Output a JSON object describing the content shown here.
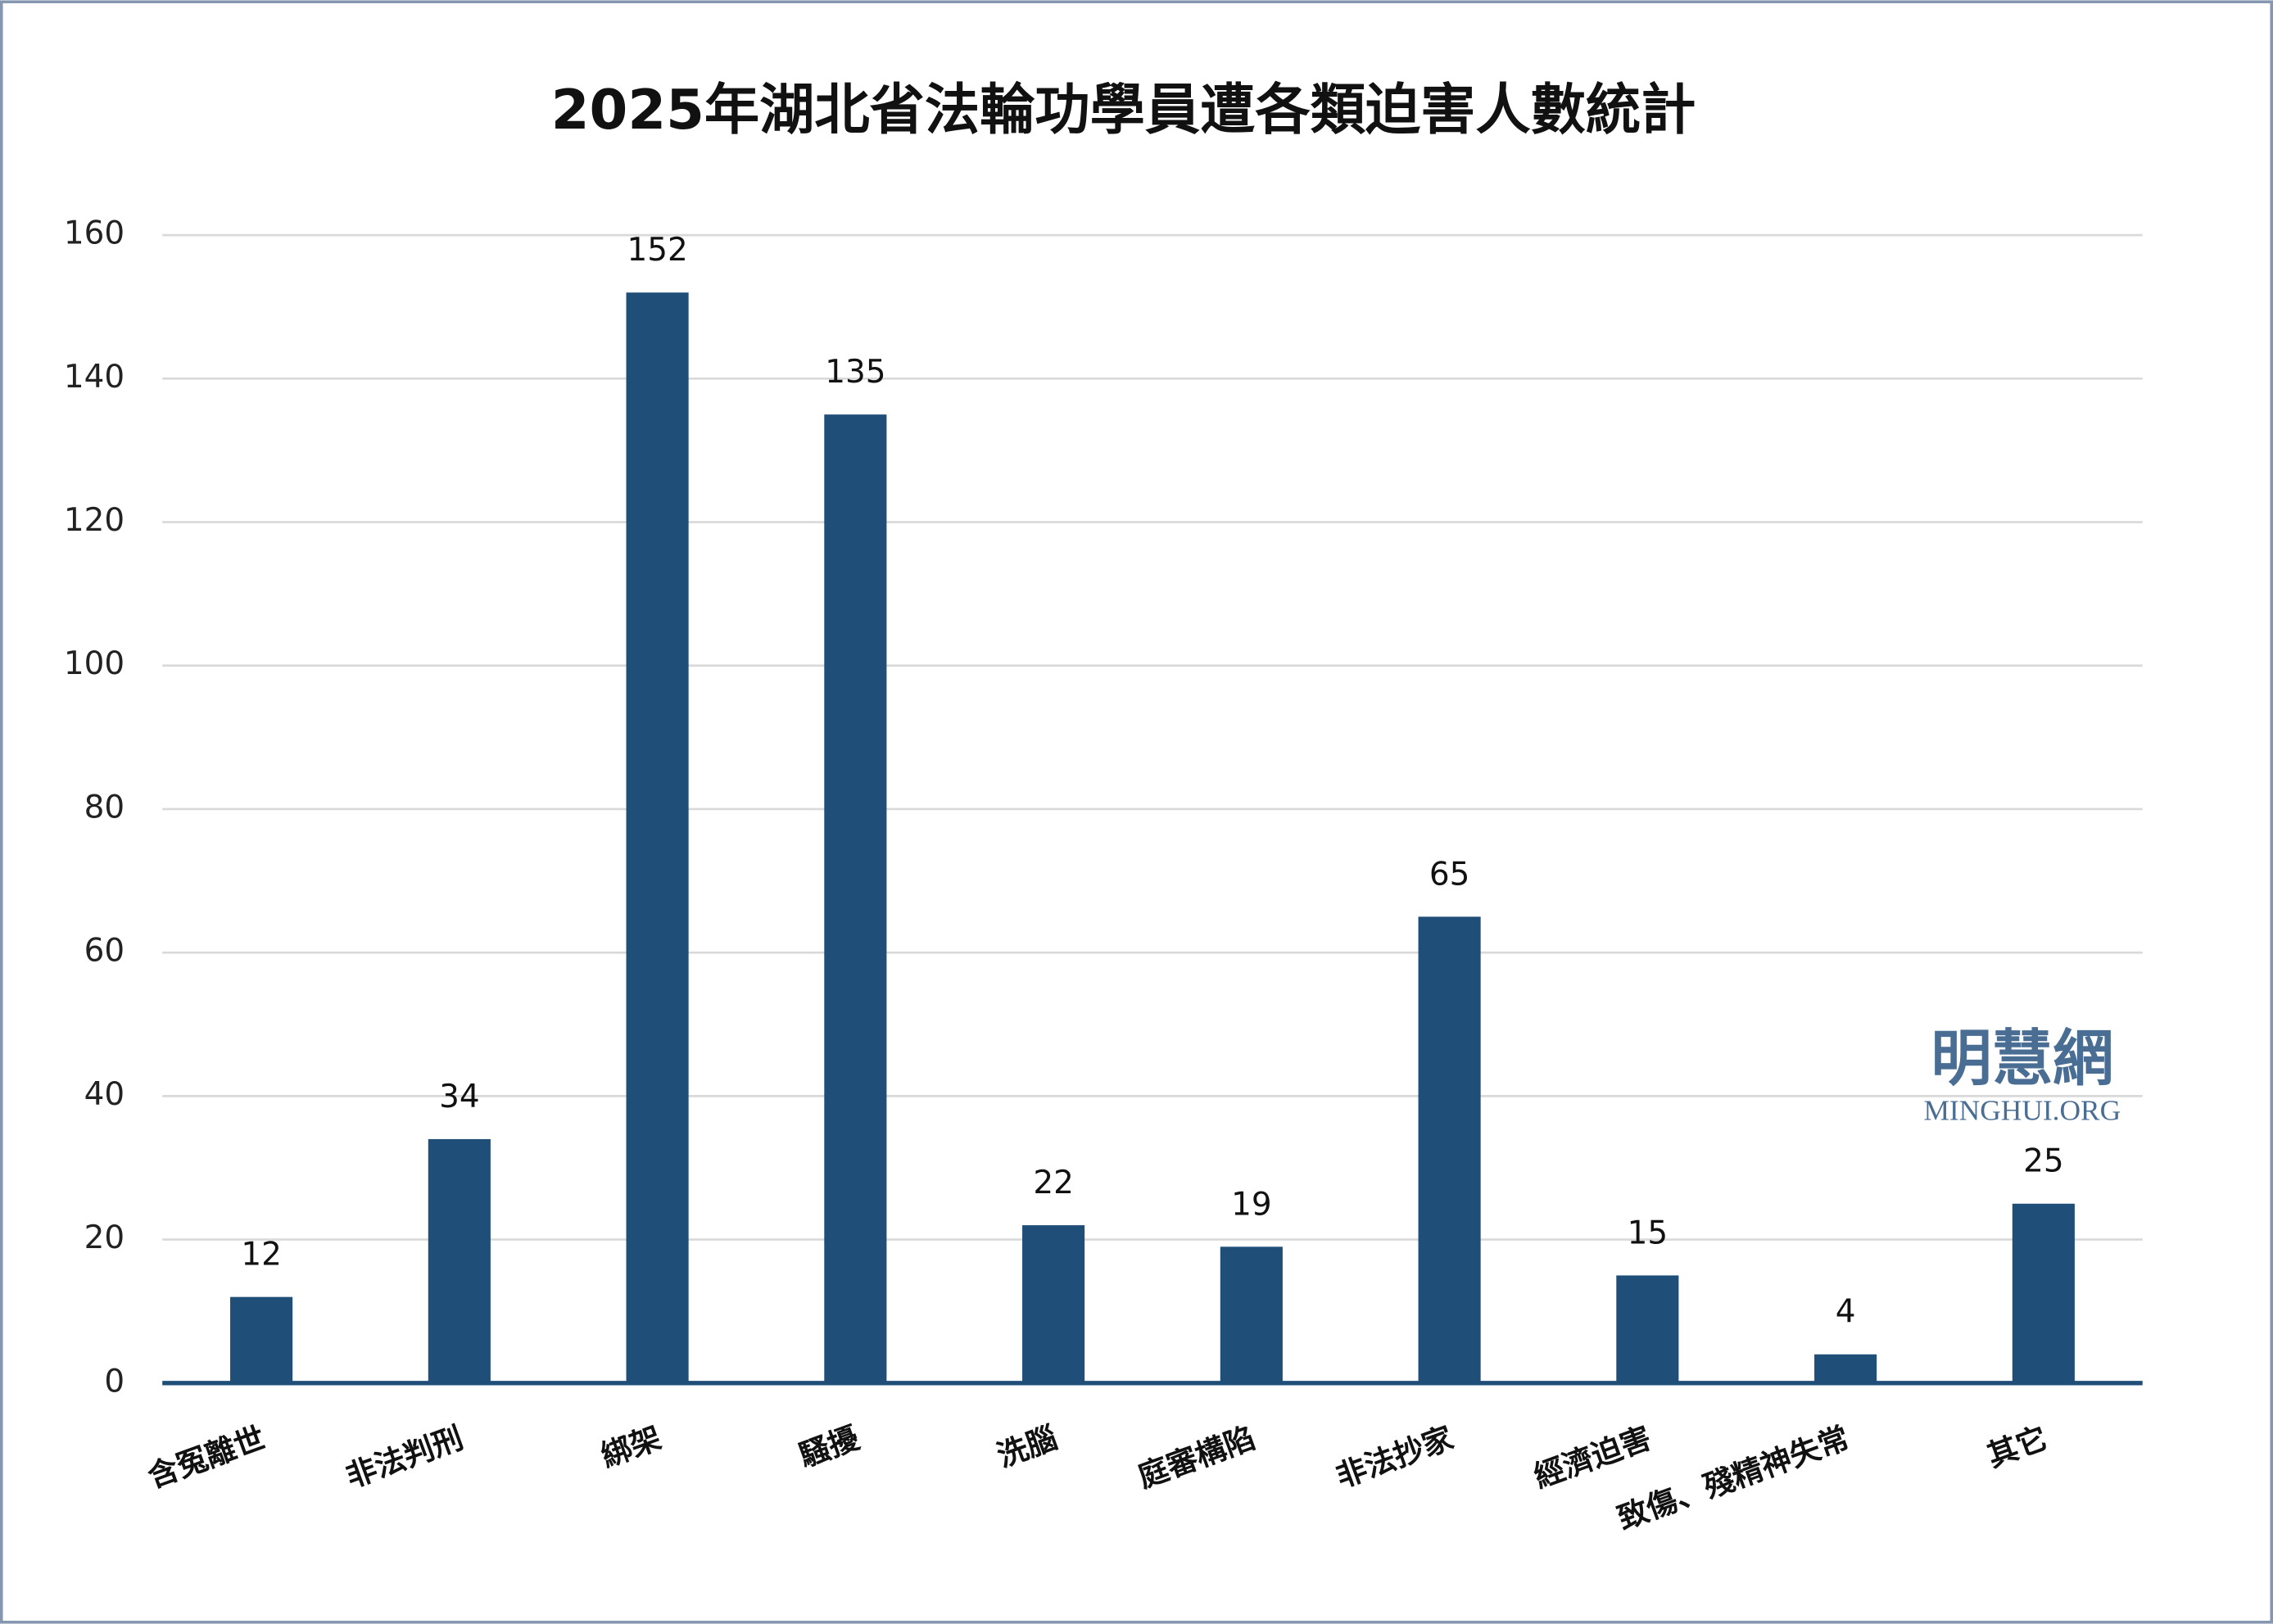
{
  "chart_data": {
    "type": "bar",
    "title": "2025年湖北省法輪功學員遭各類迫害人數統計",
    "categories": [
      "含冤離世",
      "非法判刑",
      "綁架",
      "騷擾",
      "洗腦",
      "庭審構陷",
      "非法抄家",
      "經濟迫害",
      "致傷、殘精神失常",
      "其它"
    ],
    "values": [
      12,
      34,
      152,
      135,
      22,
      19,
      65,
      15,
      4,
      25
    ],
    "color": "#1f4e79",
    "ylim": [
      0,
      160
    ],
    "yticks": [
      0,
      20,
      40,
      60,
      80,
      100,
      120,
      140,
      160
    ],
    "grid": true,
    "watermark": {
      "name": "明慧網",
      "url": "MINGHUI.ORG"
    }
  }
}
